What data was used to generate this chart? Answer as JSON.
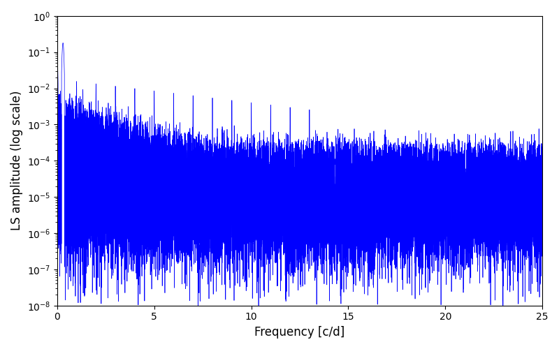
{
  "xlabel": "Frequency [c/d]",
  "ylabel": "LS amplitude (log scale)",
  "xlim": [
    0,
    25
  ],
  "ylim": [
    1e-08,
    1
  ],
  "line_color": "#0000FF",
  "line_width": 0.5,
  "yscale": "log",
  "background_color": "#ffffff",
  "seed": 42,
  "n_points": 10000,
  "freq_max": 25.0,
  "peak_amplitude": 0.18,
  "base_level": 0.0001,
  "trough_level": 1e-08
}
